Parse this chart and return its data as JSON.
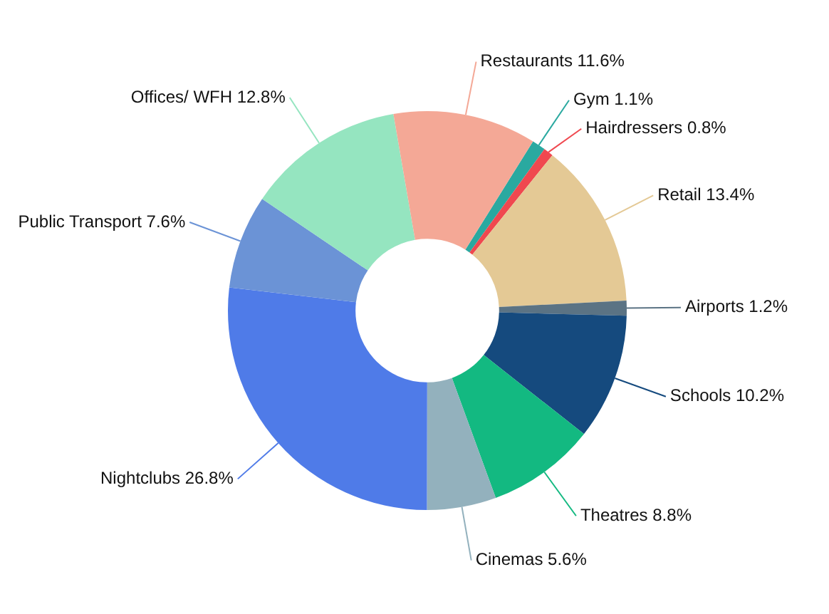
{
  "chart_data": {
    "type": "donut",
    "categories": [
      "Gym",
      "Hairdressers",
      "Retail",
      "Airports",
      "Schools",
      "Theatres",
      "Cinemas",
      "Nightclubs",
      "Public Transport",
      "Offices/ WFH",
      "Restaurants"
    ],
    "values": [
      1.1,
      0.8,
      13.4,
      1.2,
      10.2,
      8.8,
      5.6,
      26.8,
      7.6,
      12.8,
      11.6
    ],
    "value_labels": [
      "1.1%",
      "0.8%",
      "13.4%",
      "1.2%",
      "10.2%",
      "8.8%",
      "5.6%",
      "26.8%",
      "7.6%",
      "12.8%",
      "11.6%"
    ],
    "colors": [
      "#2aa9a0",
      "#f0484f",
      "#e4c995",
      "#5b7384",
      "#154a7e",
      "#13b981",
      "#93b1bd",
      "#4f7be8",
      "#6b93d6",
      "#95e5c0",
      "#f4a896"
    ],
    "legend": false
  }
}
